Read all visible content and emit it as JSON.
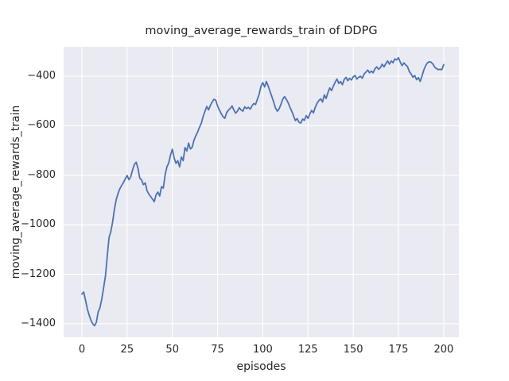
{
  "figure": {
    "title": "moving_average_rewards_train of DDPG",
    "xlabel": "episodes",
    "ylabel": "moving_average_rewards_train"
  },
  "chart_data": {
    "type": "line",
    "title": "moving_average_rewards_train of DDPG",
    "xlabel": "episodes",
    "ylabel": "moving_average_rewards_train",
    "grid": true,
    "legend": false,
    "background": "#EAEAF2",
    "grid_color": "#FFFFFF",
    "xlim": [
      -10.1,
      208.4
    ],
    "ylim": [
      -1455,
      -281
    ],
    "x_ticks": [
      0,
      25,
      50,
      75,
      100,
      125,
      150,
      175,
      200
    ],
    "x_tick_labels": [
      "0",
      "25",
      "50",
      "75",
      "100",
      "125",
      "150",
      "175",
      "200"
    ],
    "y_ticks": [
      -400,
      -600,
      -800,
      -1000,
      -1200,
      -1400
    ],
    "y_tick_labels": [
      "−400",
      "−600",
      "−800",
      "−1000",
      "−1200",
      "−1400"
    ],
    "series": [
      {
        "name": "moving_average_rewards_train",
        "color": "#4C72B0",
        "x_start": 0,
        "x_step": 1,
        "y_values": [
          -1280,
          -1272,
          -1305,
          -1340,
          -1365,
          -1386,
          -1400,
          -1408,
          -1394,
          -1352,
          -1335,
          -1300,
          -1255,
          -1208,
          -1128,
          -1052,
          -1027,
          -988,
          -936,
          -898,
          -873,
          -854,
          -841,
          -829,
          -814,
          -801,
          -818,
          -806,
          -779,
          -757,
          -747,
          -772,
          -812,
          -819,
          -838,
          -831,
          -862,
          -876,
          -886,
          -896,
          -907,
          -879,
          -868,
          -884,
          -846,
          -852,
          -799,
          -766,
          -750,
          -718,
          -695,
          -730,
          -752,
          -741,
          -766,
          -726,
          -741,
          -688,
          -702,
          -670,
          -694,
          -686,
          -657,
          -640,
          -625,
          -606,
          -590,
          -563,
          -542,
          -522,
          -536,
          -518,
          -504,
          -493,
          -497,
          -520,
          -536,
          -551,
          -563,
          -570,
          -547,
          -537,
          -530,
          -520,
          -536,
          -549,
          -541,
          -527,
          -536,
          -541,
          -523,
          -531,
          -525,
          -533,
          -520,
          -510,
          -514,
          -493,
          -472,
          -440,
          -426,
          -443,
          -421,
          -440,
          -461,
          -482,
          -504,
          -528,
          -541,
          -532,
          -514,
          -493,
          -482,
          -493,
          -507,
          -525,
          -541,
          -560,
          -579,
          -571,
          -586,
          -589,
          -573,
          -578,
          -559,
          -570,
          -552,
          -538,
          -548,
          -525,
          -509,
          -498,
          -491,
          -504,
          -475,
          -490,
          -466,
          -447,
          -458,
          -440,
          -424,
          -411,
          -429,
          -421,
          -434,
          -413,
          -404,
          -418,
          -408,
          -415,
          -402,
          -397,
          -411,
          -404,
          -400,
          -408,
          -391,
          -383,
          -375,
          -386,
          -379,
          -386,
          -370,
          -362,
          -372,
          -365,
          -351,
          -362,
          -349,
          -338,
          -351,
          -338,
          -345,
          -330,
          -334,
          -325,
          -343,
          -357,
          -346,
          -354,
          -361,
          -381,
          -391,
          -404,
          -397,
          -414,
          -405,
          -421,
          -399,
          -375,
          -357,
          -346,
          -341,
          -343,
          -350,
          -363,
          -369,
          -373,
          -372,
          -373,
          -353
        ]
      }
    ]
  }
}
